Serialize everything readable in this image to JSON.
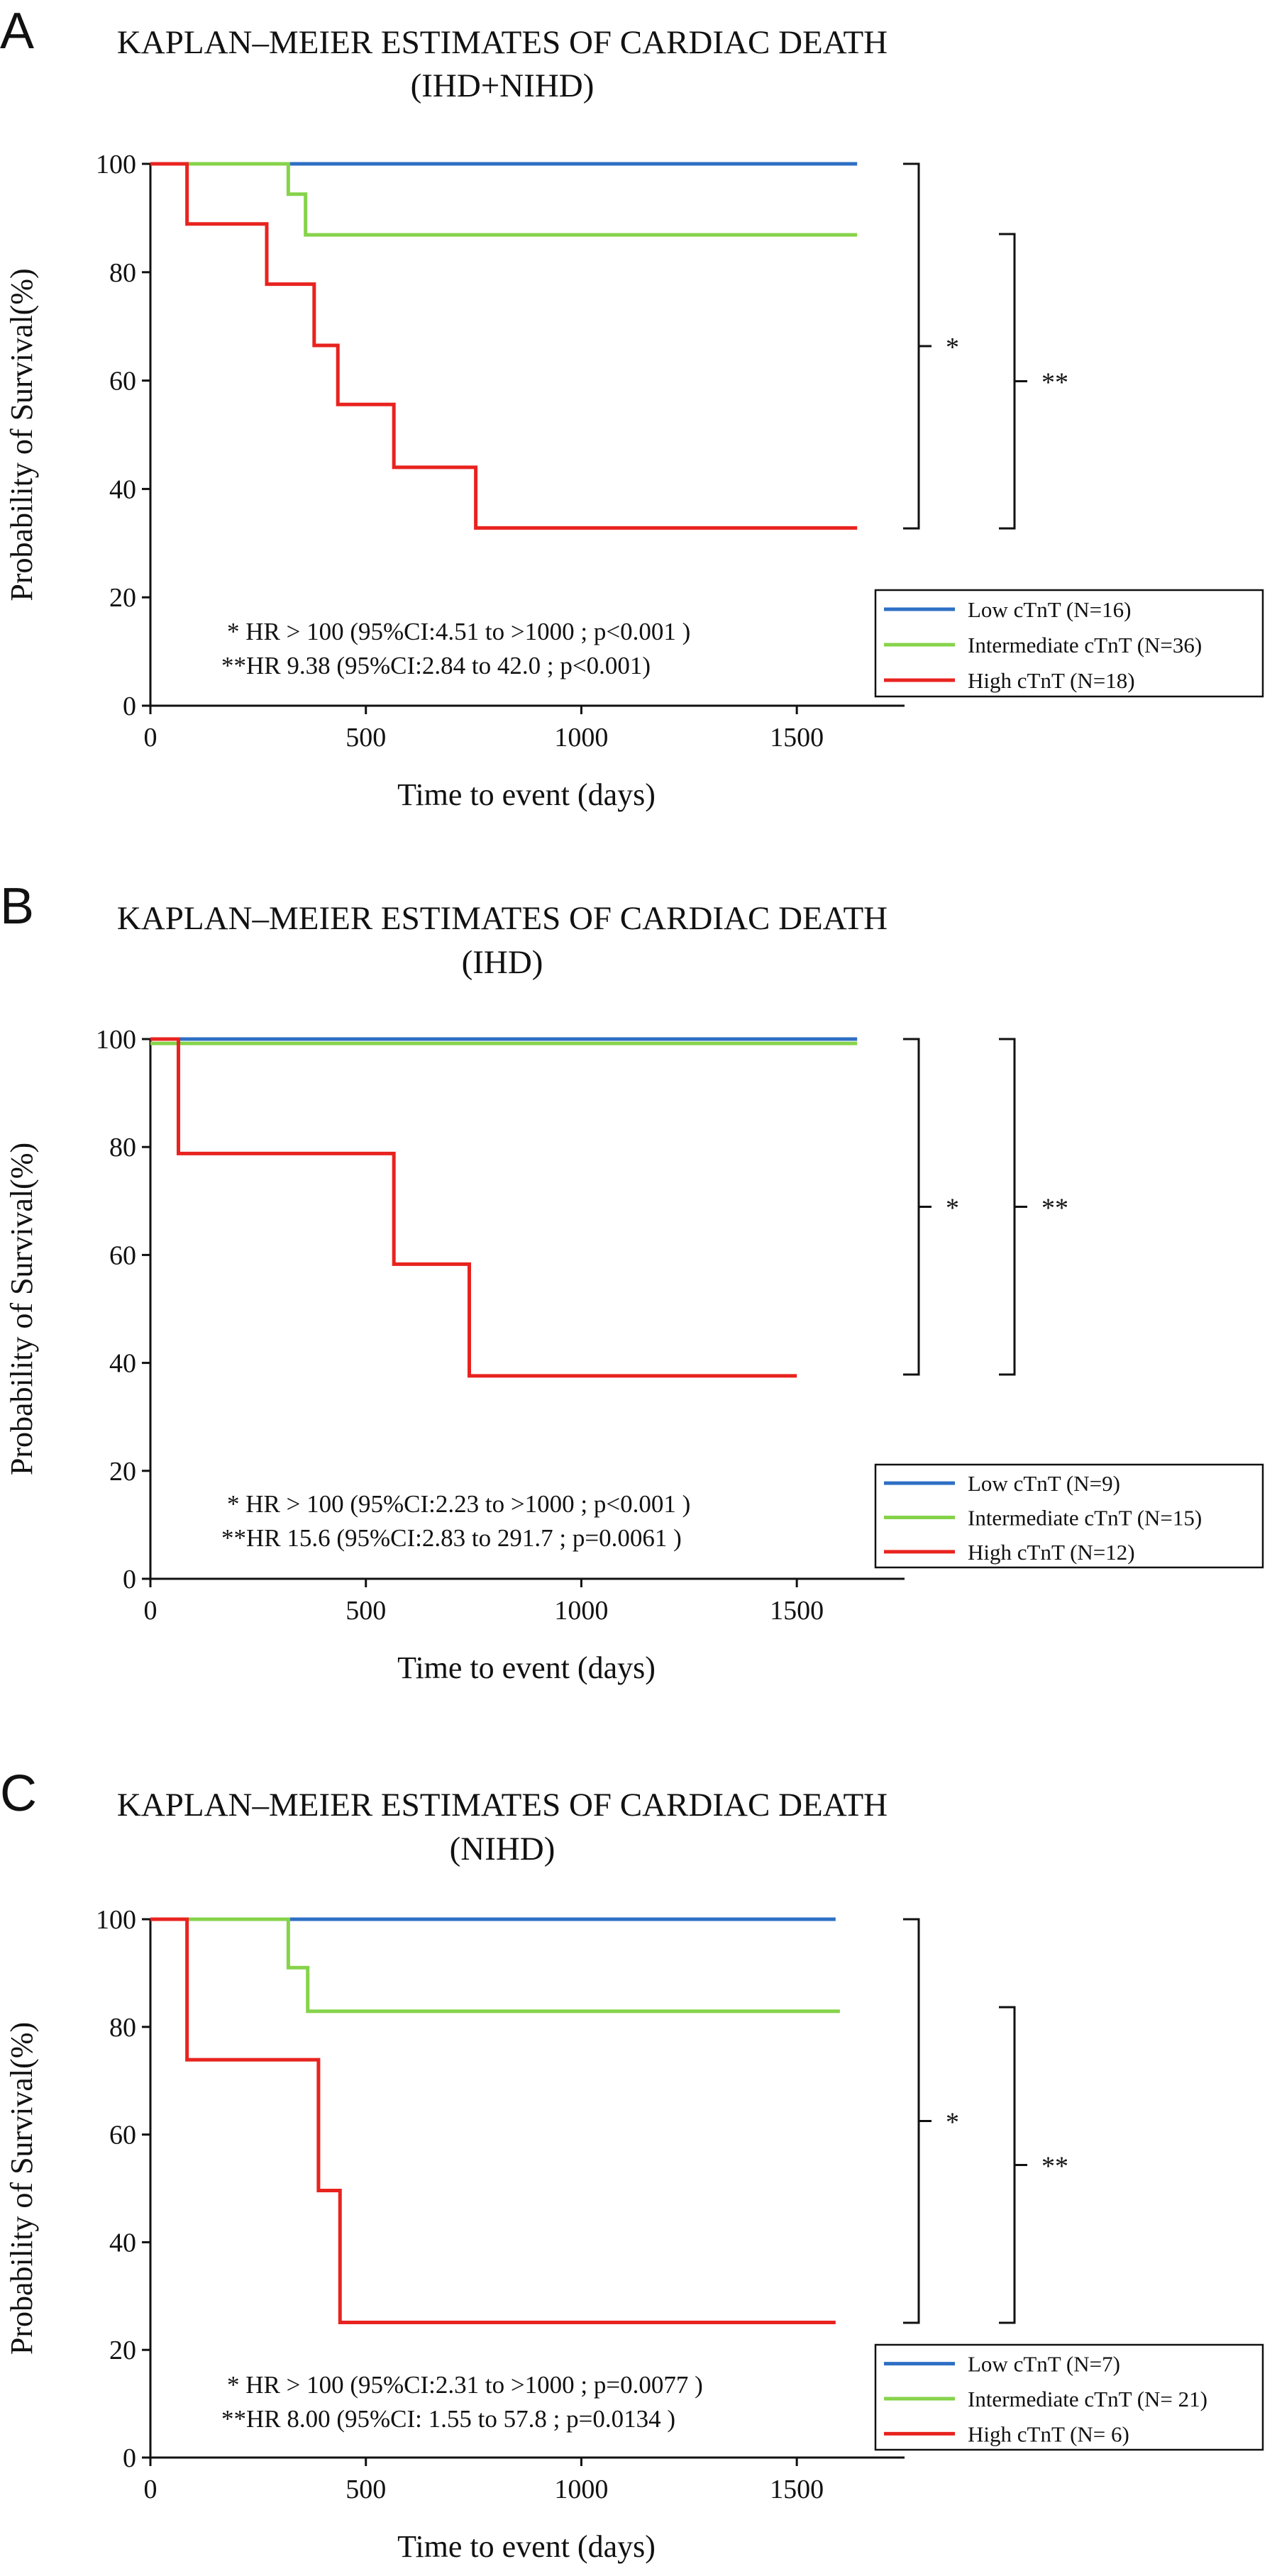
{
  "chart_data": [
    {
      "type": "line",
      "panel_letter": "A",
      "title": "KAPLAN–MEIER ESTIMATES OF CARDIAC DEATH",
      "subtitle": "(IHD+NIHD)",
      "xlabel": "Time to event (days)",
      "ylabel": "Probability of Survival(%)",
      "xlim": [
        0,
        1750
      ],
      "ylim": [
        0,
        100
      ],
      "xticks": [
        0,
        500,
        1000,
        1500
      ],
      "yticks": [
        0,
        20,
        40,
        60,
        80,
        100
      ],
      "grid": false,
      "legend_position": "bottom-right",
      "series": [
        {
          "name": "Low cTnT (N=16)",
          "color": "#2e6fc4",
          "step": true,
          "x": [
            0,
            1640
          ],
          "y": [
            100,
            100
          ]
        },
        {
          "name": "Intermediate cTnT (N=36)",
          "color": "#86d34a",
          "step": true,
          "x": [
            0,
            320,
            360,
            1640
          ],
          "y": [
            100,
            94.4,
            86.9,
            86.9
          ]
        },
        {
          "name": "High cTnT (N=18)",
          "color": "#e8231f",
          "step": true,
          "x": [
            0,
            85,
            270,
            380,
            435,
            565,
            755,
            1640
          ],
          "y": [
            100,
            88.9,
            77.8,
            66.5,
            55.6,
            44.0,
            32.8,
            32.8
          ]
        }
      ],
      "brackets": [
        {
          "label": "*",
          "from": 100,
          "to": 32.8
        },
        {
          "label": "**",
          "from": 86.9,
          "to": 32.8
        }
      ],
      "annotations": [
        "* HR > 100 (95%CI:4.51 to >1000 ;  p<0.001 )",
        "**HR 9.38 (95%CI:2.84 to 42.0 ;  p<0.001)"
      ]
    },
    {
      "type": "line",
      "panel_letter": "B",
      "title": "KAPLAN–MEIER ESTIMATES OF CARDIAC DEATH",
      "subtitle": "(IHD)",
      "xlabel": "Time to event (days)",
      "ylabel": "Probability of Survival(%)",
      "xlim": [
        0,
        1750
      ],
      "ylim": [
        0,
        100
      ],
      "xticks": [
        0,
        500,
        1000,
        1500
      ],
      "yticks": [
        0,
        20,
        40,
        60,
        80,
        100
      ],
      "grid": false,
      "legend_position": "bottom-right",
      "series": [
        {
          "name": "Low  cTnT (N=9)",
          "color": "#2e6fc4",
          "step": true,
          "x": [
            0,
            1640
          ],
          "y": [
            100,
            100
          ]
        },
        {
          "name": "Intermediate cTnT (N=15)",
          "color": "#86d34a",
          "step": true,
          "x": [
            0,
            1640
          ],
          "y": [
            99.2,
            99.2
          ]
        },
        {
          "name": "High cTnT (N=12)",
          "color": "#e8231f",
          "step": true,
          "x": [
            0,
            65,
            565,
            740,
            1500
          ],
          "y": [
            100,
            78.8,
            58.3,
            37.6,
            37.6
          ]
        }
      ],
      "brackets": [
        {
          "label": "*",
          "from": 99.5,
          "to": 37.6
        },
        {
          "label": "**",
          "from": 99.5,
          "to": 37.6
        }
      ],
      "annotations": [
        "* HR > 100 (95%CI:2.23 to >1000 ;  p<0.001 )",
        "**HR 15.6 (95%CI:2.83 to 291.7 ;  p=0.0061 )"
      ]
    },
    {
      "type": "line",
      "panel_letter": "C",
      "title": "KAPLAN–MEIER ESTIMATES OF CARDIAC DEATH",
      "subtitle": "(NIHD)",
      "xlabel": "Time to event (days)",
      "ylabel": "Probability of Survival(%)",
      "xlim": [
        0,
        1750
      ],
      "ylim": [
        0,
        100
      ],
      "xticks": [
        0,
        500,
        1000,
        1500
      ],
      "yticks": [
        0,
        20,
        40,
        60,
        80,
        100
      ],
      "grid": false,
      "legend_position": "bottom-right",
      "series": [
        {
          "name": "Low cTnT (N=7)",
          "color": "#2e6fc4",
          "step": true,
          "x": [
            0,
            1590
          ],
          "y": [
            100,
            100
          ]
        },
        {
          "name": "Intermediate cTnT (N= 21)",
          "color": "#86d34a",
          "step": true,
          "x": [
            0,
            320,
            365,
            1600
          ],
          "y": [
            100,
            91.0,
            82.9,
            82.9
          ]
        },
        {
          "name": "High  cTnT (N= 6)",
          "color": "#e8231f",
          "step": true,
          "x": [
            0,
            85,
            390,
            440,
            1590
          ],
          "y": [
            100,
            73.9,
            49.6,
            25.1,
            25.1
          ]
        }
      ],
      "brackets": [
        {
          "label": "*",
          "from": 100,
          "to": 25.1
        },
        {
          "label": "**",
          "from": 82.9,
          "to": 25.1
        }
      ],
      "annotations": [
        "* HR > 100 (95%CI:2.31 to >1000 ;  p=0.0077 )",
        "**HR 8.00 (95%CI: 1.55 to 57.8 ;  p=0.0134 )"
      ]
    }
  ]
}
